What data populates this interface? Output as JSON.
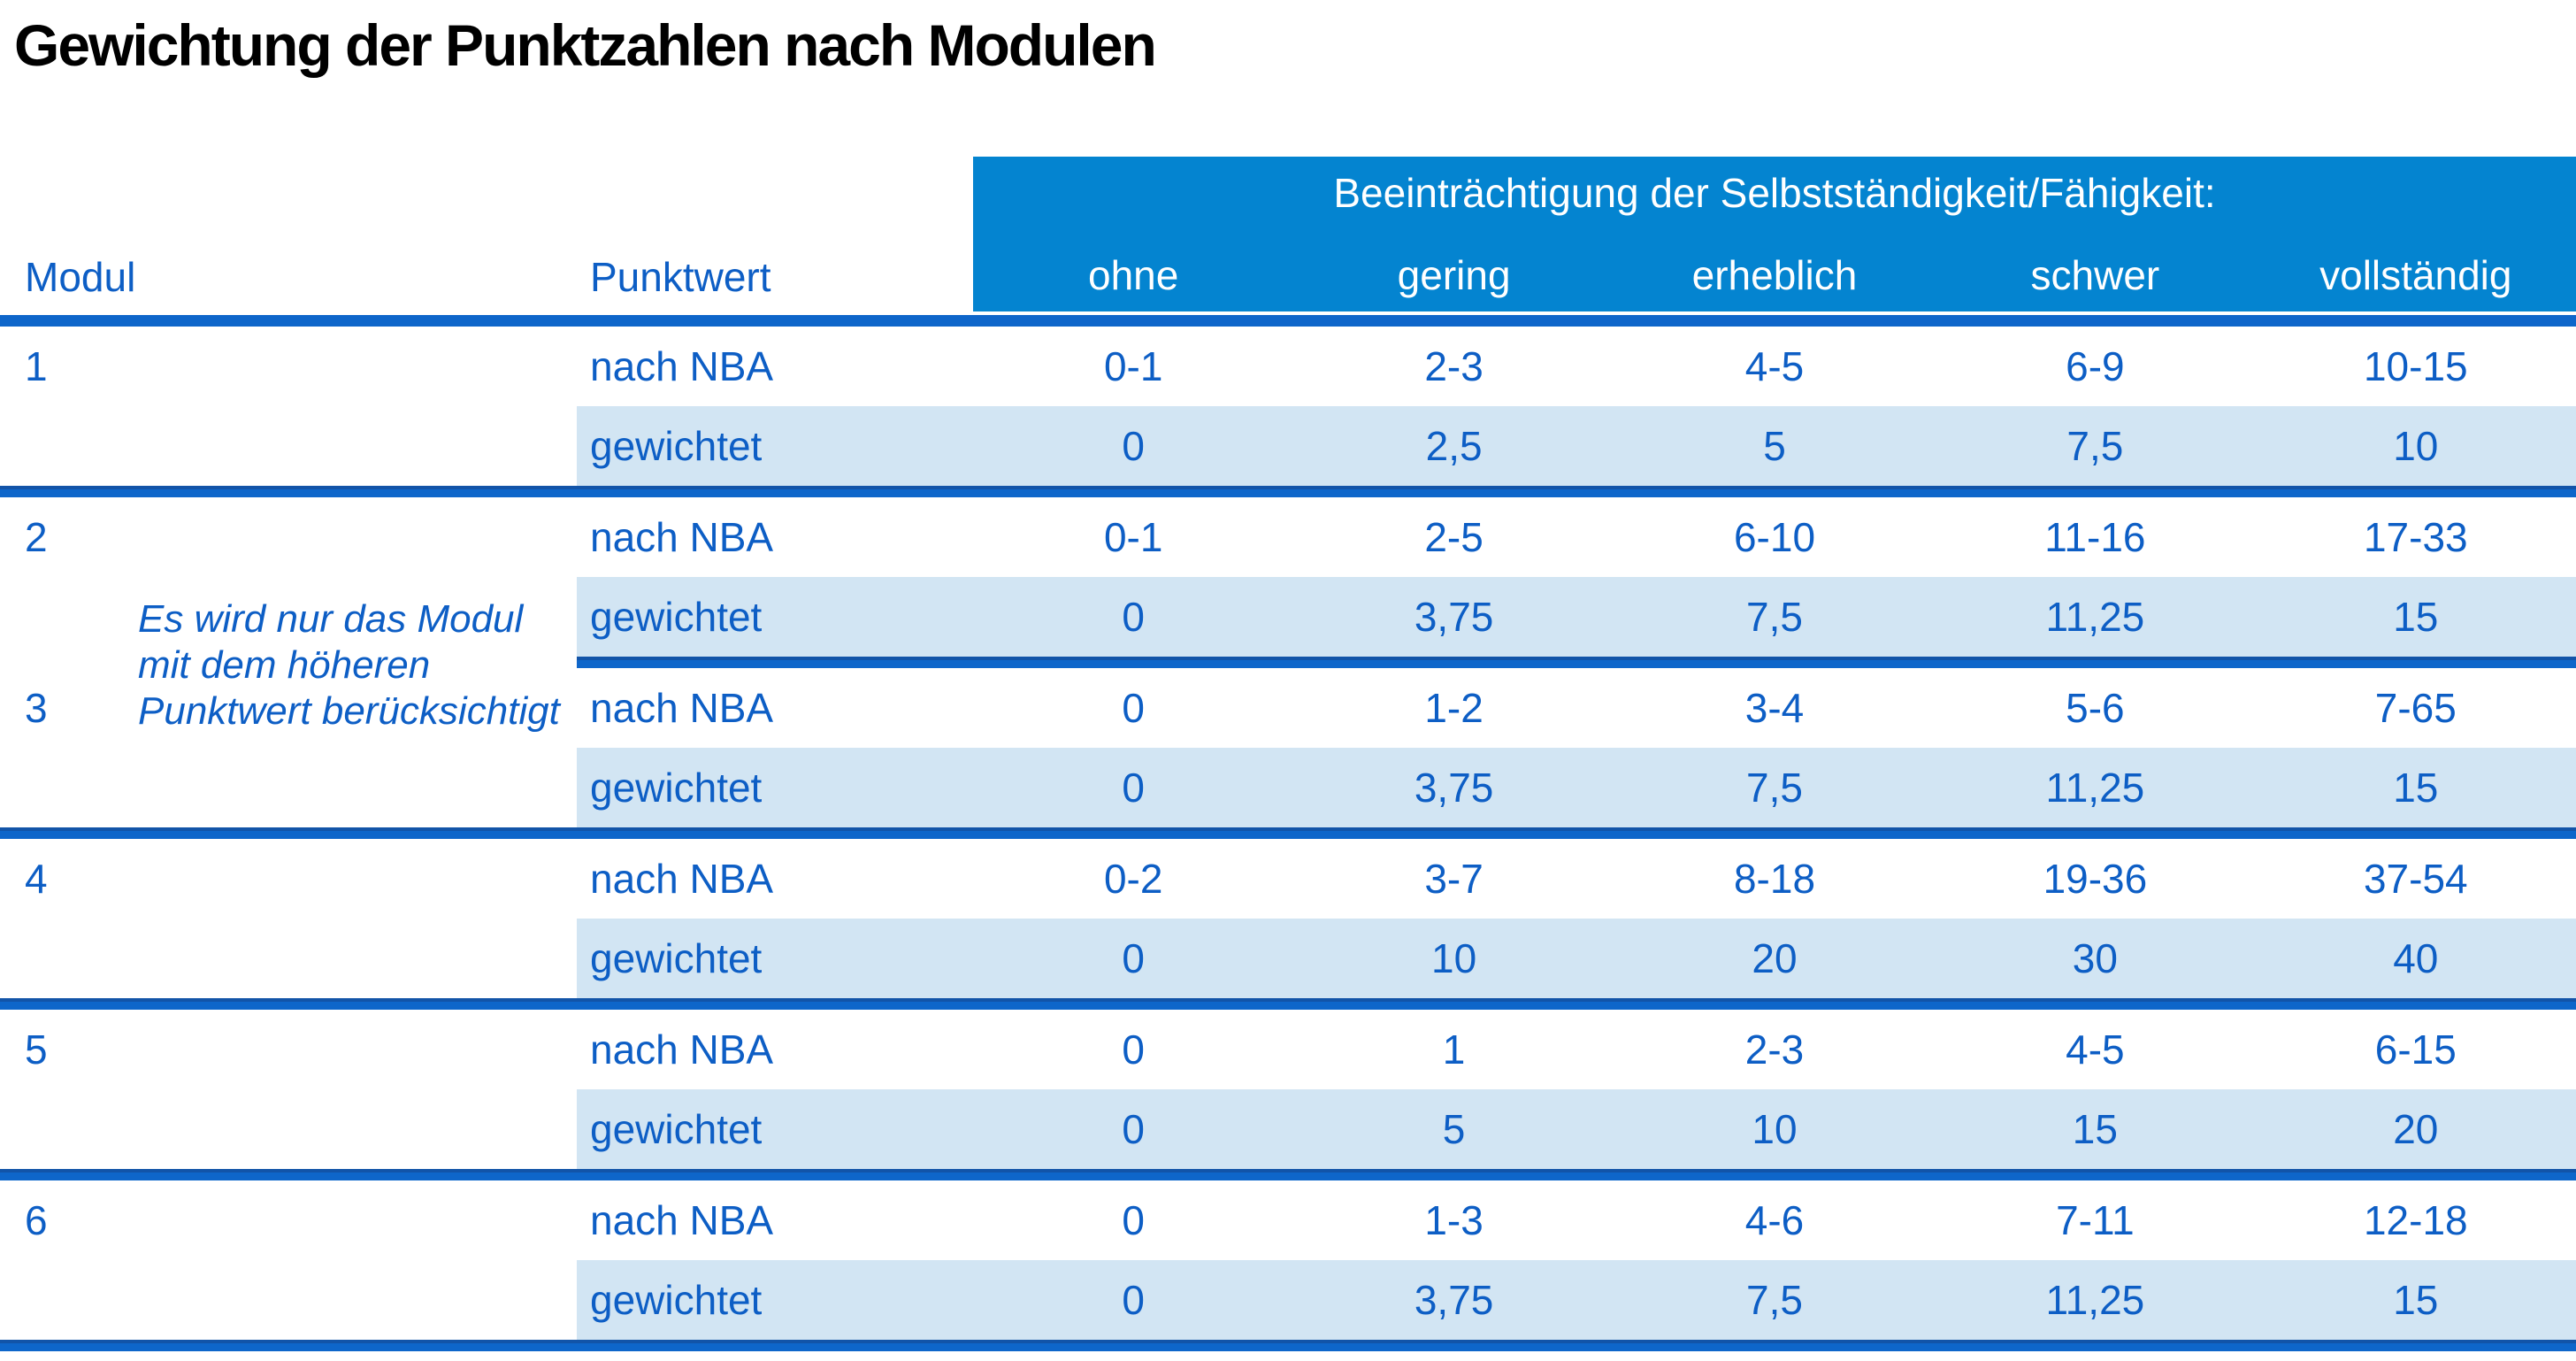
{
  "title": "Gewichtung der Punktzahlen nach Modulen",
  "colors": {
    "band_background": "#0484d0",
    "band_text": "#ffffff",
    "table_text": "#0d5ec5",
    "weighted_row_background": "#d2e5f3",
    "rule_main": "#0e66ca",
    "rule_dark_edge": "#1254a8",
    "title_text": "#000000"
  },
  "table": {
    "band_title": "Beeinträchtigung der Selbstständigkeit/Fähigkeit:",
    "severity_levels": [
      "ohne",
      "gering",
      "erheblich",
      "schwer",
      "vollständig"
    ],
    "col_headers": {
      "modul": "Modul",
      "punktwert": "Punktwert"
    },
    "row_labels": {
      "nba": "nach NBA",
      "weighted": "gewichtet"
    },
    "note": {
      "line1": "Es wird nur das Modul",
      "line2": "mit dem höheren",
      "line3": "Punktwert berücksichtigt"
    },
    "modules": [
      {
        "module": "1",
        "nba": [
          "0-1",
          "2-3",
          "4-5",
          "6-9",
          "10-15"
        ],
        "weighted": [
          "0",
          "2,5",
          "5",
          "7,5",
          "10"
        ]
      },
      {
        "module": "2",
        "nba": [
          "0-1",
          "2-5",
          "6-10",
          "11-16",
          "17-33"
        ],
        "weighted": [
          "0",
          "3,75",
          "7,5",
          "11,25",
          "15"
        ]
      },
      {
        "module": "3",
        "nba": [
          "0",
          "1-2",
          "3-4",
          "5-6",
          "7-65"
        ],
        "weighted": [
          "0",
          "3,75",
          "7,5",
          "11,25",
          "15"
        ]
      },
      {
        "module": "4",
        "nba": [
          "0-2",
          "3-7",
          "8-18",
          "19-36",
          "37-54"
        ],
        "weighted": [
          "0",
          "10",
          "20",
          "30",
          "40"
        ]
      },
      {
        "module": "5",
        "nba": [
          "0",
          "1",
          "2-3",
          "4-5",
          "6-15"
        ],
        "weighted": [
          "0",
          "5",
          "10",
          "15",
          "20"
        ]
      },
      {
        "module": "6",
        "nba": [
          "0",
          "1-3",
          "4-6",
          "7-11",
          "12-18"
        ],
        "weighted": [
          "0",
          "3,75",
          "7,5",
          "11,25",
          "15"
        ]
      }
    ]
  }
}
